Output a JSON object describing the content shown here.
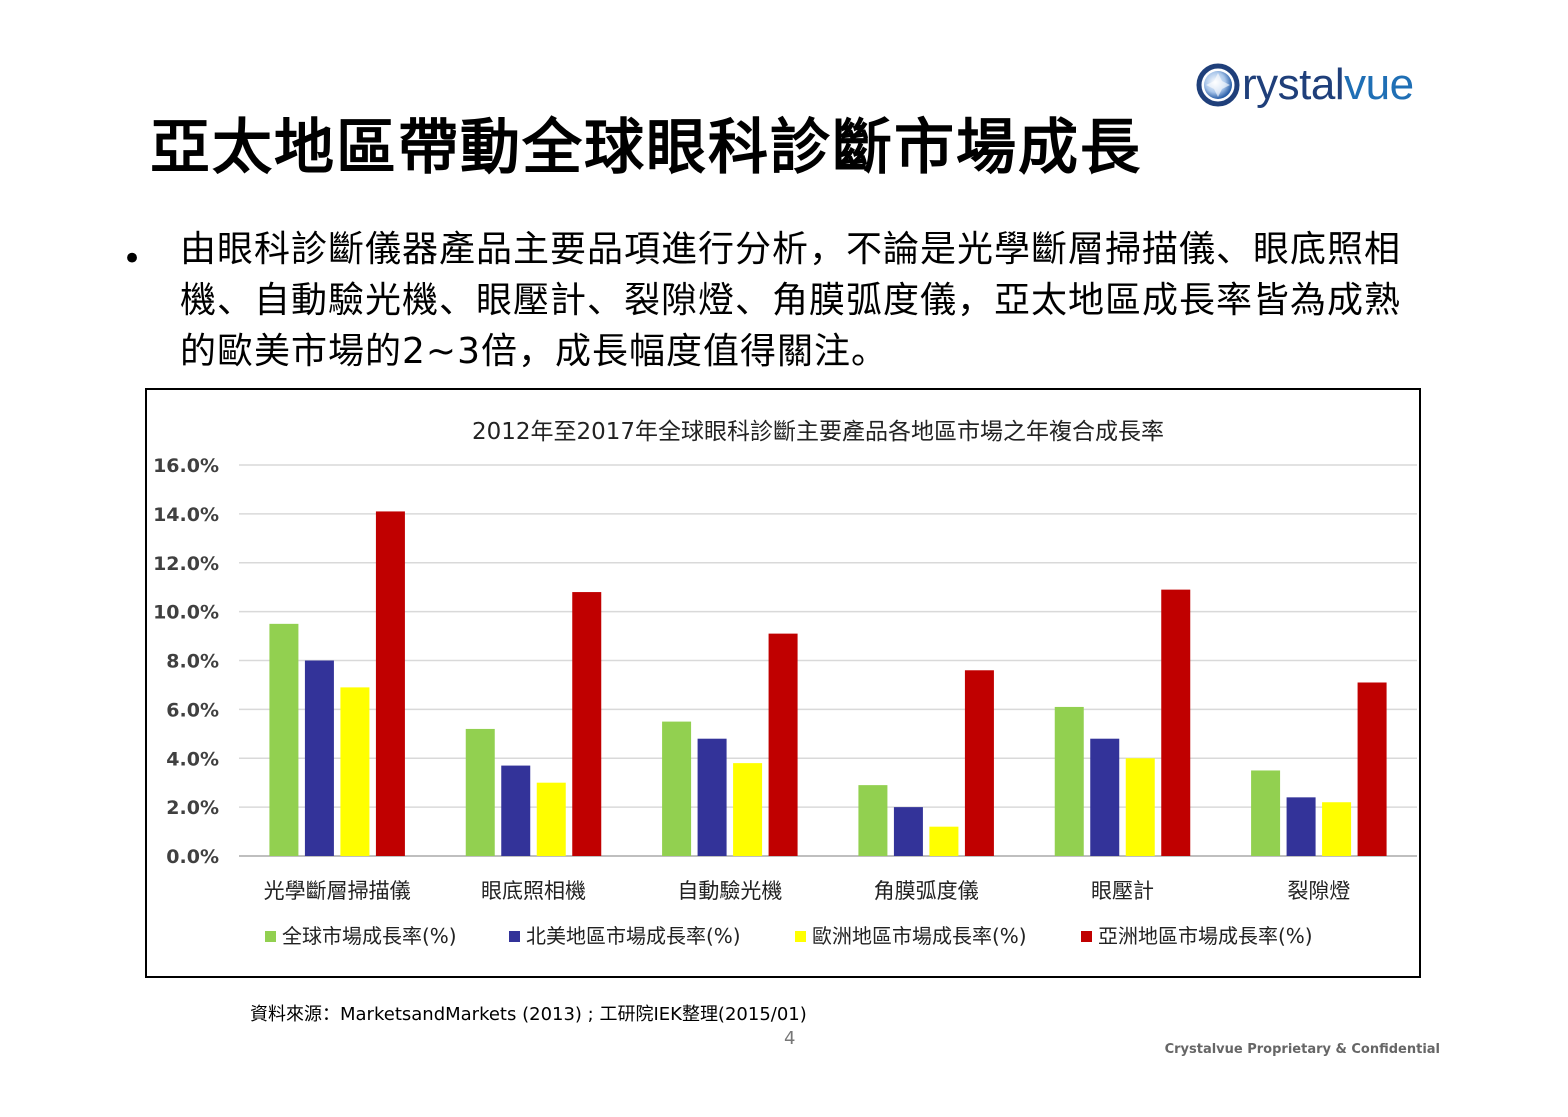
{
  "logo": {
    "lead": "C",
    "rest_dark": "rystal",
    "rest_accent": "vue"
  },
  "title": "亞太地區帶動全球眼科診斷市場成長",
  "bullet": {
    "symbol": "•",
    "text": "由眼科診斷儀器產品主要品項進行分析，不論是光學斷層掃描儀、眼底照相機、自動驗光機、眼壓計、裂隙燈、角膜弧度儀，亞太地區成長率皆為成熟的歐美市場的2~3倍，成長幅度值得關注。"
  },
  "chart_data": {
    "type": "bar",
    "title": "2012年至2017年全球眼科診斷主要產品各地區市場之年複合成長率",
    "categories": [
      "光學斷層掃描儀",
      "眼底照相機",
      "自動驗光機",
      "角膜弧度儀",
      "眼壓計",
      "裂隙燈"
    ],
    "series": [
      {
        "name": "全球市場成長率(%)",
        "color": "#92d050",
        "values": [
          9.5,
          5.2,
          5.5,
          2.9,
          6.1,
          3.5
        ]
      },
      {
        "name": "北美地區市場成長率(%)",
        "color": "#333399",
        "values": [
          8.0,
          3.7,
          4.8,
          2.0,
          4.8,
          2.4
        ]
      },
      {
        "name": "歐洲地區市場成長率(%)",
        "color": "#ffff00",
        "values": [
          6.9,
          3.0,
          3.8,
          1.2,
          4.0,
          2.2
        ]
      },
      {
        "name": "亞洲地區市場成長率(%)",
        "color": "#c00000",
        "values": [
          14.1,
          10.8,
          9.1,
          7.6,
          10.9,
          7.1
        ]
      }
    ],
    "yticks": [
      "0.0%",
      "2.0%",
      "4.0%",
      "6.0%",
      "8.0%",
      "10.0%",
      "12.0%",
      "14.0%",
      "16.0%"
    ],
    "ylim": [
      0,
      16
    ],
    "grid": true,
    "legend_position": "bottom"
  },
  "source": "資料來源：MarketsandMarkets (2013) ; 工研院IEK整理(2015/01)",
  "page_number": "4",
  "footer": "Crystalvue Proprietary & Confidential"
}
